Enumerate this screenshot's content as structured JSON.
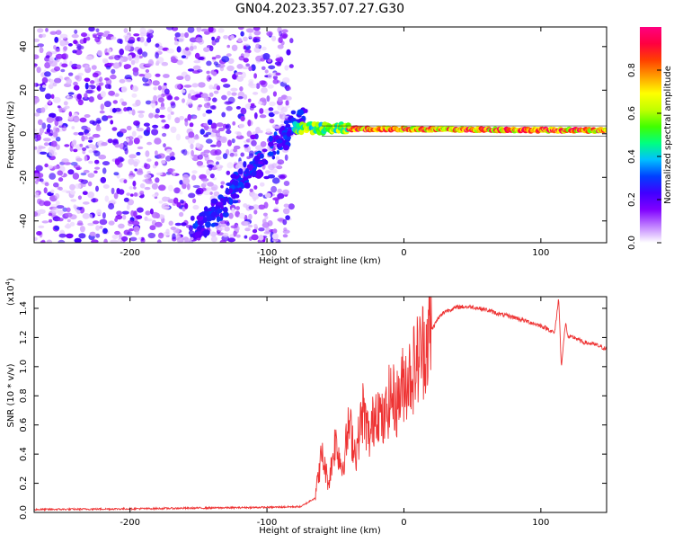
{
  "figure_title": "GN04.2023.357.07.27.G30",
  "chart_data": [
    {
      "type": "heatmap",
      "title": "GN04.2023.357.07.27.G30",
      "xlabel": "Height of straight line (km)",
      "ylabel": "Frequency (Hz)",
      "xlim": [
        -270,
        148
      ],
      "ylim": [
        -50,
        49
      ],
      "x_ticks": [
        -200,
        -100,
        0,
        100
      ],
      "x_tick_labels": [
        "-200",
        "-100",
        "0",
        "100"
      ],
      "y_ticks": [
        -40,
        -20,
        0,
        20,
        40
      ],
      "y_tick_labels": [
        "-40",
        "-20",
        "0",
        "20",
        "40"
      ],
      "grid": false,
      "colorbar": {
        "label": "Normalized spectral amplitude",
        "range": [
          0,
          1
        ],
        "ticks": [
          0.0,
          0.2,
          0.4,
          0.6,
          0.8
        ],
        "tick_labels": [
          "0.0",
          "0.2",
          "0.4",
          "0.6",
          "0.8"
        ],
        "colormap": [
          "#ffffff",
          "#c080ff",
          "#8000ff",
          "#4000ff",
          "#0040ff",
          "#00c0ff",
          "#00ff80",
          "#40ff00",
          "#c0ff00",
          "#ffff00",
          "#ffa000",
          "#ff4000",
          "#ff0040",
          "#ff0080"
        ]
      },
      "features": {
        "noise_region_x": [
          -270,
          -82
        ],
        "descending_signal": {
          "x": [
            -150,
            -75
          ],
          "y": [
            -44,
            8
          ]
        },
        "tracked_signal": {
          "x": [
            -80,
            148
          ],
          "y_start": 2.5,
          "y_end": 1.5
        }
      }
    },
    {
      "type": "line",
      "xlabel": "Height of straight line (km)",
      "ylabel": "SNR (10 * v/v)",
      "y_multiplier": "(x10",
      "y_multiplier_exp": "4",
      "y_multiplier_close": ")",
      "xlim": [
        -270,
        148
      ],
      "ylim": [
        0,
        1.48
      ],
      "x_ticks": [
        -200,
        -100,
        0,
        100
      ],
      "x_tick_labels": [
        "-200",
        "-100",
        "0",
        "100"
      ],
      "y_ticks": [
        0.0,
        0.2,
        0.4,
        0.6,
        0.8,
        1.0,
        1.2,
        1.4
      ],
      "y_tick_labels": [
        "0.0",
        "0.2",
        "0.4",
        "0.6",
        "0.8",
        "1.0",
        "1.2",
        "1.4"
      ],
      "grid": false,
      "series": [
        {
          "color": "#ee3333",
          "x": [
            -270,
            -200,
            -150,
            -100,
            -75,
            -65,
            -60,
            -55,
            -50,
            -45,
            -40,
            -35,
            -30,
            -25,
            -20,
            -15,
            -10,
            -5,
            0,
            5,
            10,
            15,
            20,
            25,
            30,
            40,
            50,
            60,
            70,
            80,
            90,
            100,
            105,
            110,
            113,
            115,
            118,
            120,
            125,
            130,
            140,
            148
          ],
          "y": [
            0.02,
            0.025,
            0.03,
            0.035,
            0.04,
            0.1,
            0.4,
            0.2,
            0.5,
            0.3,
            0.6,
            0.4,
            0.7,
            0.5,
            0.75,
            0.6,
            0.8,
            0.75,
            0.9,
            0.95,
            1.05,
            1.15,
            1.25,
            1.33,
            1.38,
            1.41,
            1.41,
            1.39,
            1.36,
            1.34,
            1.31,
            1.28,
            1.26,
            1.23,
            1.47,
            1.0,
            1.3,
            1.2,
            1.2,
            1.17,
            1.15,
            1.12
          ]
        }
      ]
    }
  ]
}
